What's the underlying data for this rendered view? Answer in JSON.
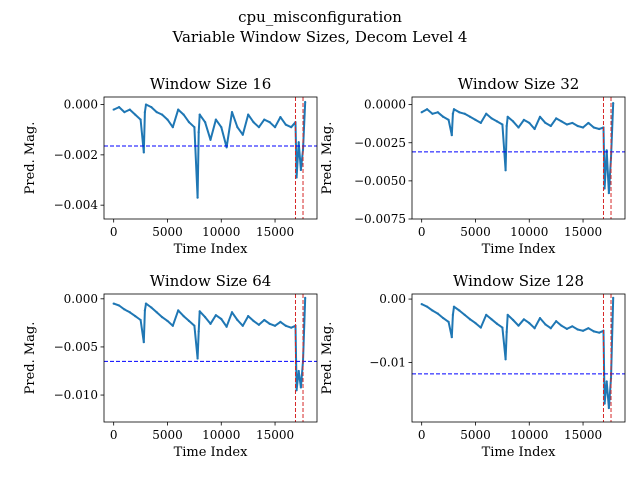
{
  "figure": {
    "title": "cpu_misconfiguration",
    "subtitle": "Variable Window Sizes, Decom Level 4"
  },
  "colors": {
    "series": "#1f77b4",
    "threshold": "#0000ff",
    "marker": "#d62728",
    "axis": "#000000"
  },
  "chart_data": [
    {
      "type": "line",
      "title": "Window Size 16",
      "xlabel": "Time Index",
      "ylabel": "Pred. Mag.",
      "xlim": [
        -900,
        18900
      ],
      "ylim": [
        -0.00455,
        0.0003
      ],
      "xticks": [
        0,
        5000,
        10000,
        15000
      ],
      "xticklabels": [
        "0",
        "5000",
        "10000",
        "15000"
      ],
      "yticks": [
        0.0,
        -0.002,
        -0.004
      ],
      "yticklabels": [
        "0.000",
        "−0.002",
        "−0.004"
      ],
      "threshold_y": -0.00165,
      "vlines_x": [
        16900,
        17600
      ],
      "series": [
        {
          "x": [
            0,
            500,
            1000,
            1500,
            2000,
            2500,
            2800,
            2900,
            3000,
            3500,
            4000,
            4500,
            5000,
            5500,
            6000,
            6500,
            7000,
            7500,
            7800,
            7900,
            8000,
            8500,
            9000,
            9500,
            10000,
            10500,
            11000,
            11500,
            12000,
            12500,
            13000,
            13500,
            14000,
            14500,
            15000,
            15500,
            16000,
            16500,
            16900,
            17000,
            17200,
            17400,
            17600,
            17800
          ],
          "y": [
            -0.0002,
            -0.0001,
            -0.0003,
            -0.0002,
            -0.0004,
            -0.0006,
            -0.0019,
            -0.0003,
            0.0,
            -0.0001,
            -0.0003,
            -0.0004,
            -0.0006,
            -0.0009,
            -0.0002,
            -0.0004,
            -0.0007,
            -0.0009,
            -0.0037,
            -0.0011,
            -0.0004,
            -0.0007,
            -0.0014,
            -0.0006,
            -0.0009,
            -0.0017,
            -0.0003,
            -0.0009,
            -0.0012,
            -0.0004,
            -0.0007,
            -0.0009,
            -0.0006,
            -0.0007,
            -0.0009,
            -0.0005,
            -0.0008,
            -0.0009,
            -0.0007,
            -0.0029,
            -0.0015,
            -0.0026,
            -0.0018,
            0.0001
          ]
        }
      ]
    },
    {
      "type": "line",
      "title": "Window Size 32",
      "xlabel": "Time Index",
      "ylabel": "Pred. Mag.",
      "xlim": [
        -900,
        18900
      ],
      "ylim": [
        -0.0075,
        0.0005
      ],
      "xticks": [
        0,
        5000,
        10000,
        15000
      ],
      "xticklabels": [
        "0",
        "5000",
        "10000",
        "15000"
      ],
      "yticks": [
        0.0,
        -0.0025,
        -0.005,
        -0.0075
      ],
      "yticklabels": [
        "0.0000",
        "−0.0025",
        "−0.0050",
        "−0.0075"
      ],
      "threshold_y": -0.0031,
      "vlines_x": [
        16900,
        17600
      ],
      "series": [
        {
          "x": [
            0,
            500,
            1000,
            1500,
            2000,
            2500,
            2800,
            2900,
            3000,
            3500,
            4000,
            4500,
            5000,
            5500,
            6000,
            6500,
            7000,
            7500,
            7800,
            7900,
            8000,
            8500,
            9000,
            9500,
            10000,
            10500,
            11000,
            11500,
            12000,
            12500,
            13000,
            13500,
            14000,
            14500,
            15000,
            15500,
            16000,
            16500,
            16900,
            17000,
            17200,
            17400,
            17600,
            17800
          ],
          "y": [
            -0.0005,
            -0.0003,
            -0.0006,
            -0.0005,
            -0.0008,
            -0.001,
            -0.002,
            -0.0006,
            -0.0003,
            -0.0005,
            -0.0006,
            -0.0008,
            -0.001,
            -0.0012,
            -0.0006,
            -0.0009,
            -0.0011,
            -0.0013,
            -0.0043,
            -0.0014,
            -0.0008,
            -0.0011,
            -0.0015,
            -0.001,
            -0.0012,
            -0.0016,
            -0.0008,
            -0.0012,
            -0.0014,
            -0.0009,
            -0.0011,
            -0.0013,
            -0.0012,
            -0.0014,
            -0.0015,
            -0.0012,
            -0.0015,
            -0.0016,
            -0.0015,
            -0.0055,
            -0.003,
            -0.0058,
            -0.0035,
            0.0001
          ]
        }
      ]
    },
    {
      "type": "line",
      "title": "Window Size 64",
      "xlabel": "Time Index",
      "ylabel": "Pred. Mag.",
      "xlim": [
        -900,
        18900
      ],
      "ylim": [
        -0.0128,
        0.0005
      ],
      "xticks": [
        0,
        5000,
        10000,
        15000
      ],
      "xticklabels": [
        "0",
        "5000",
        "10000",
        "15000"
      ],
      "yticks": [
        0.0,
        -0.005,
        -0.01
      ],
      "yticklabels": [
        "0.000",
        "−0.005",
        "−0.010"
      ],
      "threshold_y": -0.0065,
      "vlines_x": [
        16900,
        17600
      ],
      "series": [
        {
          "x": [
            0,
            500,
            1000,
            1500,
            2000,
            2500,
            2800,
            2900,
            3000,
            3500,
            4000,
            4500,
            5000,
            5500,
            6000,
            6500,
            7000,
            7500,
            7800,
            7900,
            8000,
            8500,
            9000,
            9500,
            10000,
            10500,
            11000,
            11500,
            12000,
            12500,
            13000,
            13500,
            14000,
            14500,
            15000,
            15500,
            16000,
            16500,
            16900,
            17000,
            17200,
            17400,
            17600,
            17800
          ],
          "y": [
            -0.0005,
            -0.0007,
            -0.0011,
            -0.0014,
            -0.0018,
            -0.0022,
            -0.0045,
            -0.0012,
            -0.0005,
            -0.0009,
            -0.0014,
            -0.0019,
            -0.0023,
            -0.0028,
            -0.0012,
            -0.0018,
            -0.0023,
            -0.0028,
            -0.0062,
            -0.0034,
            -0.0013,
            -0.0019,
            -0.0026,
            -0.0017,
            -0.0021,
            -0.0029,
            -0.0014,
            -0.0022,
            -0.0028,
            -0.0018,
            -0.0023,
            -0.0027,
            -0.0022,
            -0.0026,
            -0.0028,
            -0.0024,
            -0.0028,
            -0.003,
            -0.0028,
            -0.0095,
            -0.0075,
            -0.0092,
            -0.0065,
            0.0001
          ]
        }
      ]
    },
    {
      "type": "line",
      "title": "Window Size 128",
      "xlabel": "Time Index",
      "ylabel": "Pred. Mag.",
      "xlim": [
        -900,
        18900
      ],
      "ylim": [
        -0.0194,
        0.0008
      ],
      "xticks": [
        0,
        5000,
        10000,
        15000
      ],
      "xticklabels": [
        "0",
        "5000",
        "10000",
        "15000"
      ],
      "yticks": [
        0.0,
        -0.01
      ],
      "yticklabels": [
        "0.00",
        "−0.01"
      ],
      "threshold_y": -0.0118,
      "vlines_x": [
        16900,
        17600
      ],
      "series": [
        {
          "x": [
            0,
            500,
            1000,
            1500,
            2000,
            2500,
            2800,
            2900,
            3000,
            3500,
            4000,
            4500,
            5000,
            5500,
            6000,
            6500,
            7000,
            7500,
            7800,
            7900,
            8000,
            8500,
            9000,
            9500,
            10000,
            10500,
            11000,
            11500,
            12000,
            12500,
            13000,
            13500,
            14000,
            14500,
            15000,
            15500,
            16000,
            16500,
            16900,
            17000,
            17200,
            17400,
            17600,
            17800
          ],
          "y": [
            -0.0008,
            -0.0012,
            -0.0018,
            -0.0023,
            -0.003,
            -0.0036,
            -0.006,
            -0.0025,
            -0.0012,
            -0.0018,
            -0.0025,
            -0.0032,
            -0.0038,
            -0.0045,
            -0.0025,
            -0.0032,
            -0.0039,
            -0.0045,
            -0.0095,
            -0.0052,
            -0.0025,
            -0.0033,
            -0.0042,
            -0.0032,
            -0.0038,
            -0.0046,
            -0.003,
            -0.004,
            -0.0046,
            -0.0035,
            -0.0042,
            -0.0047,
            -0.0043,
            -0.0048,
            -0.005,
            -0.0046,
            -0.0051,
            -0.0053,
            -0.005,
            -0.0165,
            -0.013,
            -0.0172,
            -0.0125,
            0.0002
          ]
        }
      ]
    }
  ]
}
